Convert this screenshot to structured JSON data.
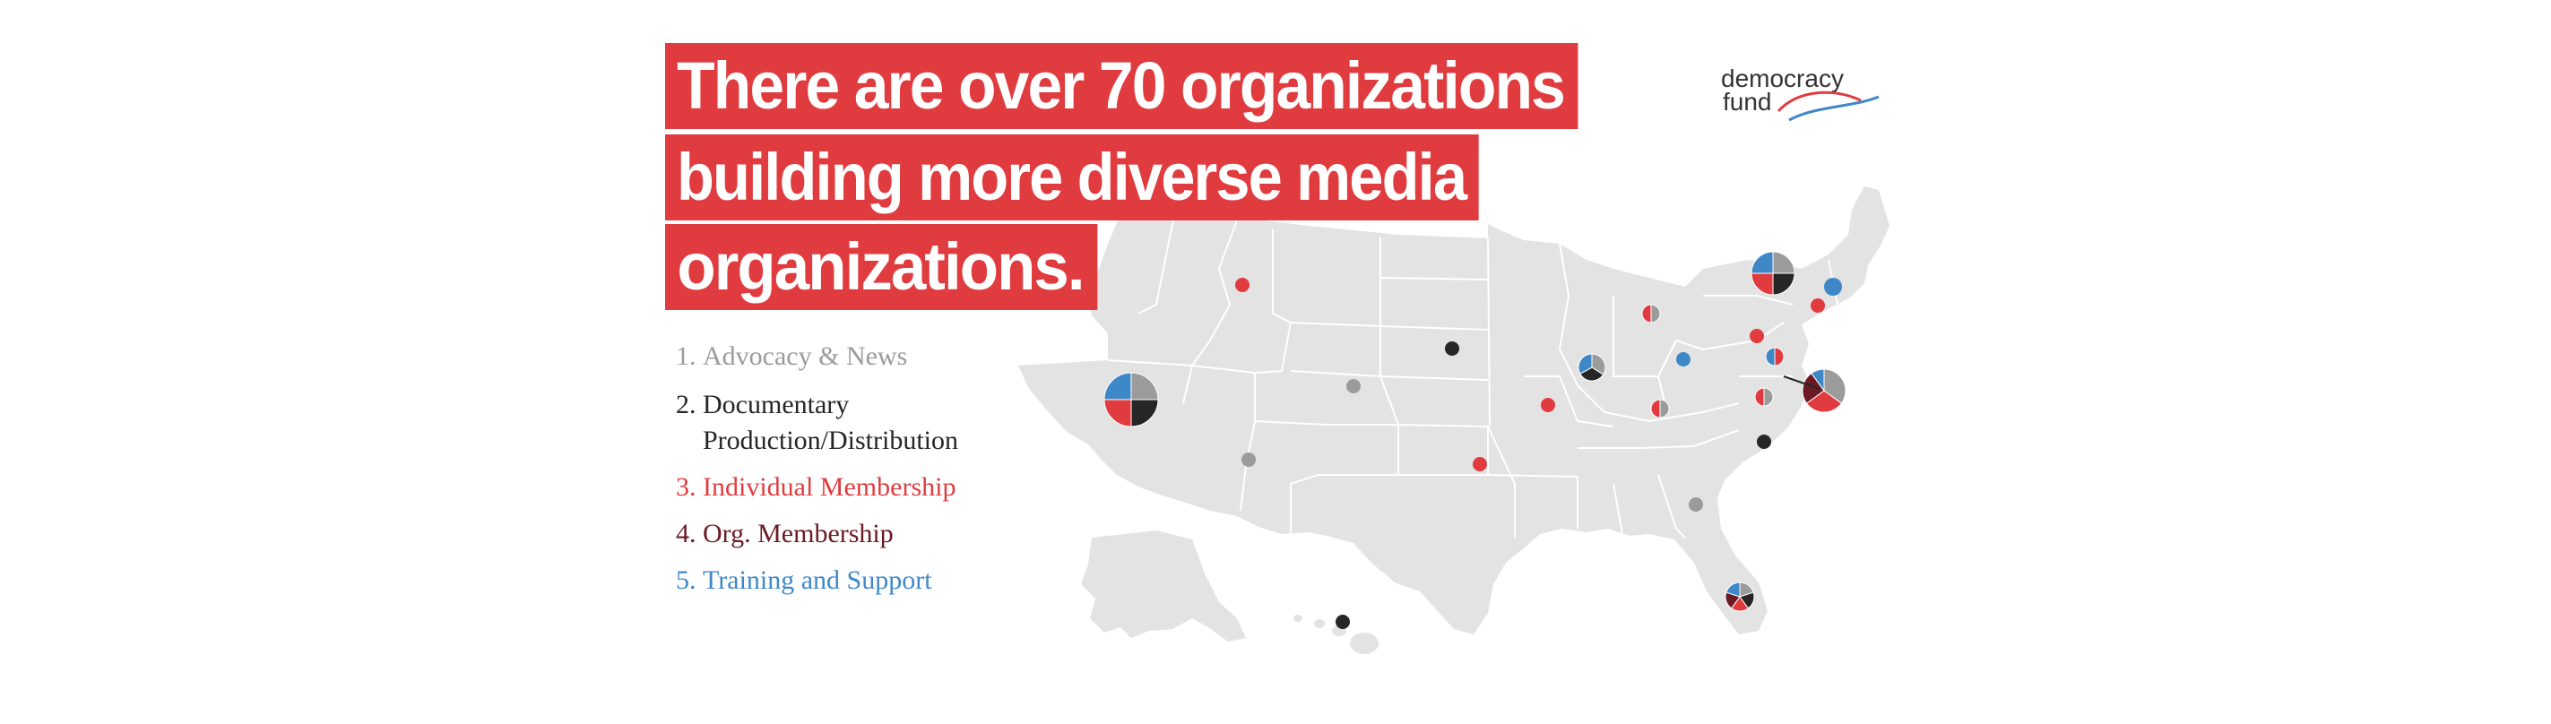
{
  "headline": {
    "line1": "There are over 70 organizations",
    "line2": "building more diverse media",
    "line3": "organizations."
  },
  "logo": {
    "line1": "democracy",
    "line2": "fund"
  },
  "legend": [
    {
      "number": "1.",
      "label": "Advocacy & News",
      "label_line2": "",
      "color": "#9b9b9b"
    },
    {
      "number": "2.",
      "label": "Documentary",
      "label_line2": "Production/Distribution",
      "color": "#262626"
    },
    {
      "number": "3.",
      "label": "Individual Membership",
      "label_line2": "",
      "color": "#e03c3f"
    },
    {
      "number": "4.",
      "label": "Org. Membership",
      "label_line2": "",
      "color": "#6b1a24"
    },
    {
      "number": "5.",
      "label": "Training and Support",
      "label_line2": "",
      "color": "#3f88c8"
    }
  ],
  "colors": {
    "headline_bg": "#e03c3f",
    "map_fill": "#e3e3e3",
    "map_border": "#ffffff",
    "cat1": "#9b9b9b",
    "cat2": "#262626",
    "cat3": "#e03c3f",
    "cat4": "#6b1a24",
    "cat5": "#3f88c8"
  },
  "map": {
    "type": "United States choropleth-style base with category pie markers",
    "locations": [
      {
        "place": "Northern California",
        "categories": [
          1,
          2,
          3,
          5
        ],
        "shares": [
          0.25,
          0.25,
          0.25,
          0.25
        ]
      },
      {
        "place": "Idaho",
        "categories": [
          3
        ],
        "shares": [
          1
        ]
      },
      {
        "place": "Nebraska",
        "categories": [
          2
        ],
        "shares": [
          1
        ]
      },
      {
        "place": "Colorado",
        "categories": [
          1
        ],
        "shares": [
          1
        ]
      },
      {
        "place": "Arizona",
        "categories": [
          1
        ],
        "shares": [
          1
        ]
      },
      {
        "place": "Oklahoma",
        "categories": [
          3
        ],
        "shares": [
          1
        ]
      },
      {
        "place": "Missouri",
        "categories": [
          3
        ],
        "shares": [
          1
        ]
      },
      {
        "place": "Chicago, Illinois",
        "categories": [
          1,
          2,
          5
        ],
        "shares": [
          0.34,
          0.33,
          0.33
        ]
      },
      {
        "place": "Michigan",
        "categories": [
          1,
          3
        ],
        "shares": [
          0.5,
          0.5
        ]
      },
      {
        "place": "Ohio",
        "categories": [
          5
        ],
        "shares": [
          1
        ]
      },
      {
        "place": "Kentucky",
        "categories": [
          1,
          3
        ],
        "shares": [
          0.5,
          0.5
        ]
      },
      {
        "place": "Georgia",
        "categories": [
          1
        ],
        "shares": [
          1
        ]
      },
      {
        "place": "Florida",
        "categories": [
          1,
          2,
          3,
          4,
          5
        ],
        "shares": [
          0.2,
          0.2,
          0.2,
          0.2,
          0.2
        ]
      },
      {
        "place": "North Carolina",
        "categories": [
          2
        ],
        "shares": [
          1
        ]
      },
      {
        "place": "Virginia",
        "categories": [
          1,
          3
        ],
        "shares": [
          0.5,
          0.5
        ]
      },
      {
        "place": "Pennsylvania",
        "categories": [
          3
        ],
        "shares": [
          1
        ]
      },
      {
        "place": "New Jersey",
        "categories": [
          3,
          5
        ],
        "shares": [
          0.5,
          0.5
        ]
      },
      {
        "place": "Upstate New York",
        "categories": [
          1,
          2,
          3,
          5
        ],
        "shares": [
          0.25,
          0.25,
          0.25,
          0.25
        ]
      },
      {
        "place": "New York City",
        "categories": [
          3
        ],
        "shares": [
          1
        ]
      },
      {
        "place": "Massachusetts",
        "categories": [
          5
        ],
        "shares": [
          1
        ]
      },
      {
        "place": "Washington, D.C.",
        "categories": [
          1,
          3,
          4,
          5
        ],
        "shares": [
          0.35,
          0.3,
          0.25,
          0.1
        ]
      },
      {
        "place": "Hawaii",
        "categories": [
          2
        ],
        "shares": [
          1
        ]
      }
    ]
  }
}
